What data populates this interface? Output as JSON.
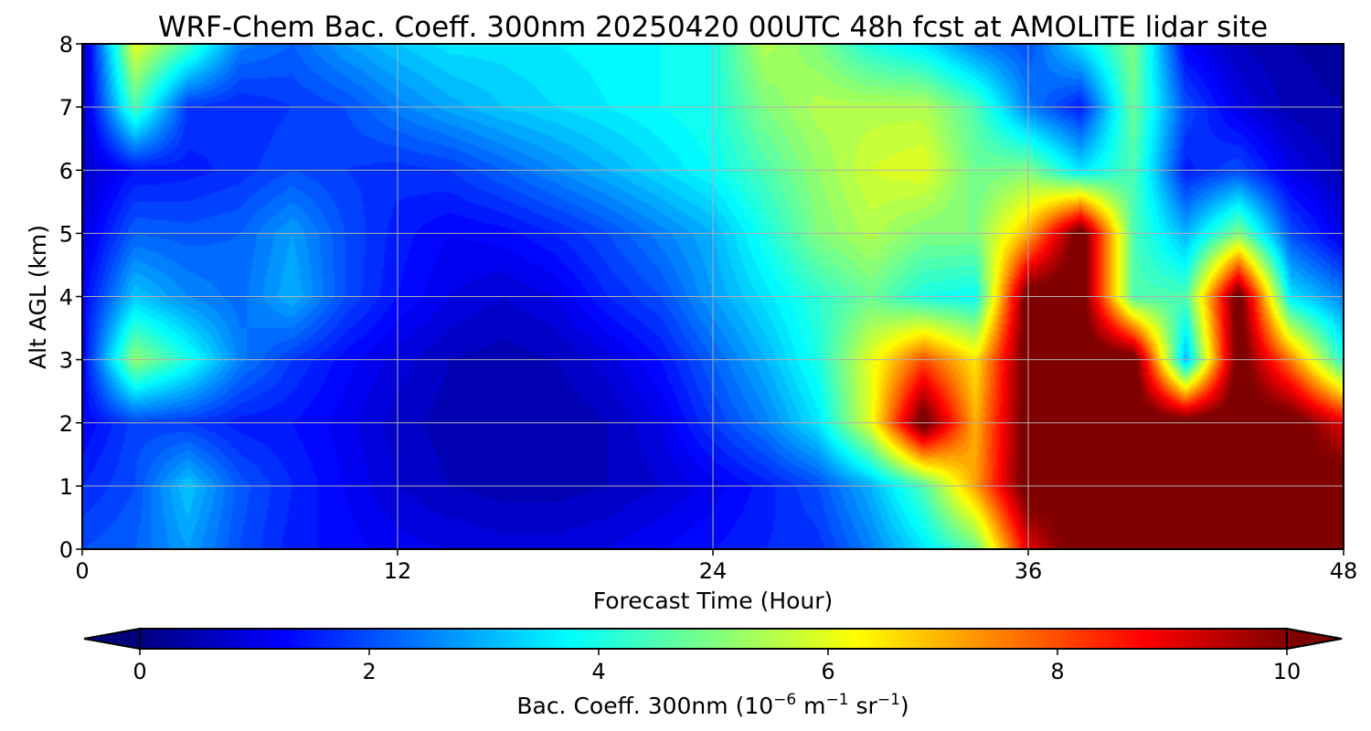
{
  "chart_data": {
    "type": "heatmap",
    "title": "WRF-Chem Bac. Coeff. 300nm  20250420 00UTC 48h fcst at AMOLITE lidar site",
    "xlabel": "Forecast Time (Hour)",
    "ylabel": "Alt AGL (km)",
    "xlim": [
      0,
      48
    ],
    "ylim": [
      0,
      8
    ],
    "xticks": [
      "0",
      "12",
      "24",
      "36",
      "48"
    ],
    "yticks": [
      "0",
      "1",
      "2",
      "3",
      "4",
      "5",
      "6",
      "7",
      "8"
    ],
    "grid": true,
    "colormap": "jet",
    "x": [
      0,
      2,
      4,
      6,
      8,
      10,
      12,
      14,
      16,
      18,
      20,
      22,
      24,
      26,
      28,
      30,
      32,
      34,
      36,
      38,
      40,
      42,
      44,
      46,
      48
    ],
    "y": [
      0,
      1,
      2,
      3,
      4,
      5,
      6,
      7,
      8
    ],
    "z": [
      [
        2.0,
        2.2,
        2.8,
        2.0,
        1.5,
        1.3,
        1.1,
        1.0,
        0.9,
        0.9,
        1.0,
        1.2,
        1.4,
        1.6,
        1.7,
        2.5,
        3.5,
        4.8,
        9.0,
        10.5,
        10.5,
        10.5,
        10.5,
        10.5,
        10.5
      ],
      [
        1.6,
        2.0,
        3.2,
        2.1,
        1.6,
        1.2,
        0.8,
        0.6,
        0.5,
        0.5,
        0.6,
        0.8,
        1.1,
        1.5,
        2.0,
        3.0,
        4.5,
        7.2,
        10.5,
        10.5,
        10.5,
        10.5,
        10.5,
        10.5,
        10.5
      ],
      [
        1.2,
        1.9,
        1.8,
        1.5,
        1.4,
        1.1,
        0.7,
        0.5,
        0.4,
        0.4,
        0.6,
        1.0,
        1.8,
        2.5,
        3.5,
        6.0,
        10.5,
        7.0,
        10.5,
        10.5,
        10.5,
        10.5,
        10.5,
        10.5,
        9.0
      ],
      [
        1.2,
        5.2,
        4.0,
        2.5,
        1.8,
        1.3,
        0.9,
        0.6,
        0.5,
        0.6,
        0.9,
        1.4,
        2.2,
        3.0,
        4.0,
        6.0,
        8.0,
        6.5,
        10.5,
        10.5,
        10.5,
        3.0,
        10.5,
        7.5,
        4.0
      ],
      [
        1.2,
        3.2,
        2.6,
        2.3,
        3.0,
        2.0,
        1.4,
        1.0,
        0.8,
        1.0,
        1.6,
        2.0,
        2.8,
        3.5,
        4.2,
        4.8,
        4.0,
        3.8,
        10.5,
        10.5,
        4.5,
        4.5,
        10.5,
        3.5,
        2.5
      ],
      [
        0.9,
        2.2,
        2.1,
        2.2,
        2.8,
        2.0,
        1.5,
        1.2,
        1.3,
        1.6,
        2.0,
        2.5,
        3.0,
        4.0,
        5.0,
        5.5,
        5.0,
        5.0,
        7.0,
        10.5,
        4.5,
        3.0,
        5.0,
        2.0,
        1.0
      ],
      [
        0.7,
        1.4,
        1.5,
        1.7,
        2.0,
        1.8,
        1.7,
        1.8,
        2.2,
        2.6,
        3.0,
        3.4,
        3.8,
        4.5,
        5.2,
        5.8,
        6.0,
        4.8,
        5.0,
        3.5,
        4.5,
        1.5,
        2.0,
        1.0,
        0.5
      ],
      [
        0.6,
        4.5,
        1.8,
        1.6,
        1.8,
        2.0,
        2.5,
        2.9,
        3.2,
        3.4,
        3.6,
        3.8,
        4.0,
        5.0,
        5.5,
        5.5,
        5.5,
        4.5,
        2.5,
        1.5,
        4.8,
        2.0,
        1.0,
        0.5,
        0.4
      ],
      [
        0.5,
        6.0,
        4.5,
        2.5,
        2.2,
        2.8,
        3.2,
        3.5,
        3.5,
        3.6,
        3.7,
        3.8,
        4.0,
        5.5,
        5.0,
        4.0,
        3.5,
        2.5,
        2.0,
        3.5,
        5.0,
        1.2,
        0.6,
        0.4,
        0.3
      ]
    ],
    "colorbar": {
      "label": "Bac. Coeff. 300nm  (10",
      "label_exp": "−6",
      "label_mid": " m",
      "label_exp2": "−1",
      "label_end": " sr",
      "label_exp3": "−1",
      "label_close": ")",
      "ticks": [
        "0",
        "2",
        "4",
        "6",
        "8",
        "10"
      ],
      "range": [
        0,
        10
      ],
      "extend": "both"
    }
  }
}
